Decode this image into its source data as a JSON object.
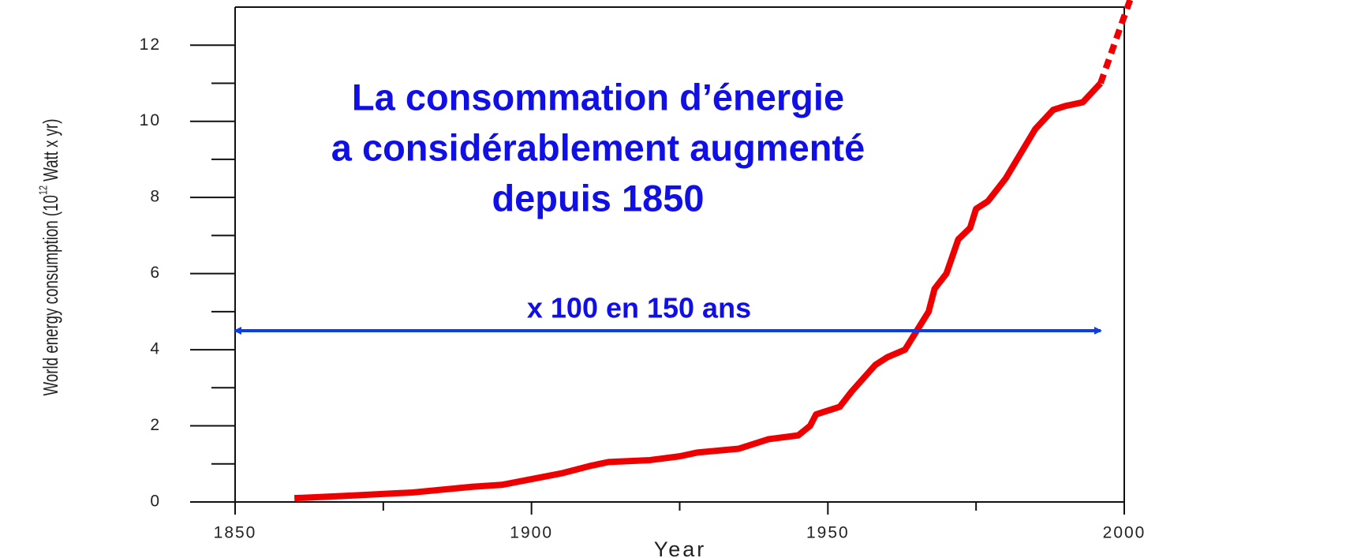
{
  "chart_data": {
    "type": "line",
    "title": [
      "La consommation d’énergie",
      "a considérablement augmenté",
      "depuis 1850"
    ],
    "x_label": "Year",
    "y_label": [
      "World energy consumption (10",
      "12",
      " Watt x yr)"
    ],
    "xlim": [
      1850,
      2000
    ],
    "ylim": [
      0,
      13
    ],
    "xticks": [
      1850,
      1900,
      1950,
      2000
    ],
    "xminorticks": [
      1875,
      1925,
      1975
    ],
    "yticks": [
      0,
      2,
      4,
      6,
      8,
      10,
      12
    ],
    "yminorticks": [
      1,
      3,
      5,
      7,
      9,
      11
    ],
    "series": [
      {
        "color": "#ee0000",
        "style": "solid",
        "x": [
          1860,
          1870,
          1880,
          1890,
          1895,
          1900,
          1905,
          1910,
          1913,
          1920,
          1925,
          1928,
          1935,
          1940,
          1945,
          1947,
          1948,
          1952,
          1954,
          1958,
          1960,
          1963,
          1965,
          1967,
          1968,
          1970,
          1972,
          1974,
          1975,
          1977,
          1980,
          1985,
          1988,
          1990,
          1993,
          1996
        ],
        "values": [
          0.1,
          0.17,
          0.25,
          0.4,
          0.45,
          0.6,
          0.75,
          0.95,
          1.05,
          1.1,
          1.2,
          1.3,
          1.4,
          1.65,
          1.75,
          2.0,
          2.3,
          2.5,
          2.9,
          3.6,
          3.8,
          4.0,
          4.5,
          5.0,
          5.6,
          6.0,
          6.9,
          7.2,
          7.7,
          7.9,
          8.5,
          9.8,
          10.3,
          10.4,
          10.5,
          11.0
        ]
      },
      {
        "color": "#ee0000",
        "style": "dotted",
        "x": [
          1996,
          2001
        ],
        "values": [
          11.0,
          13.2
        ]
      }
    ],
    "annotations": [
      {
        "text": "x 100 en 150 ans",
        "x": [
          1850,
          1996
        ],
        "y": 4.5,
        "color": "#0a3cf0"
      }
    ]
  }
}
